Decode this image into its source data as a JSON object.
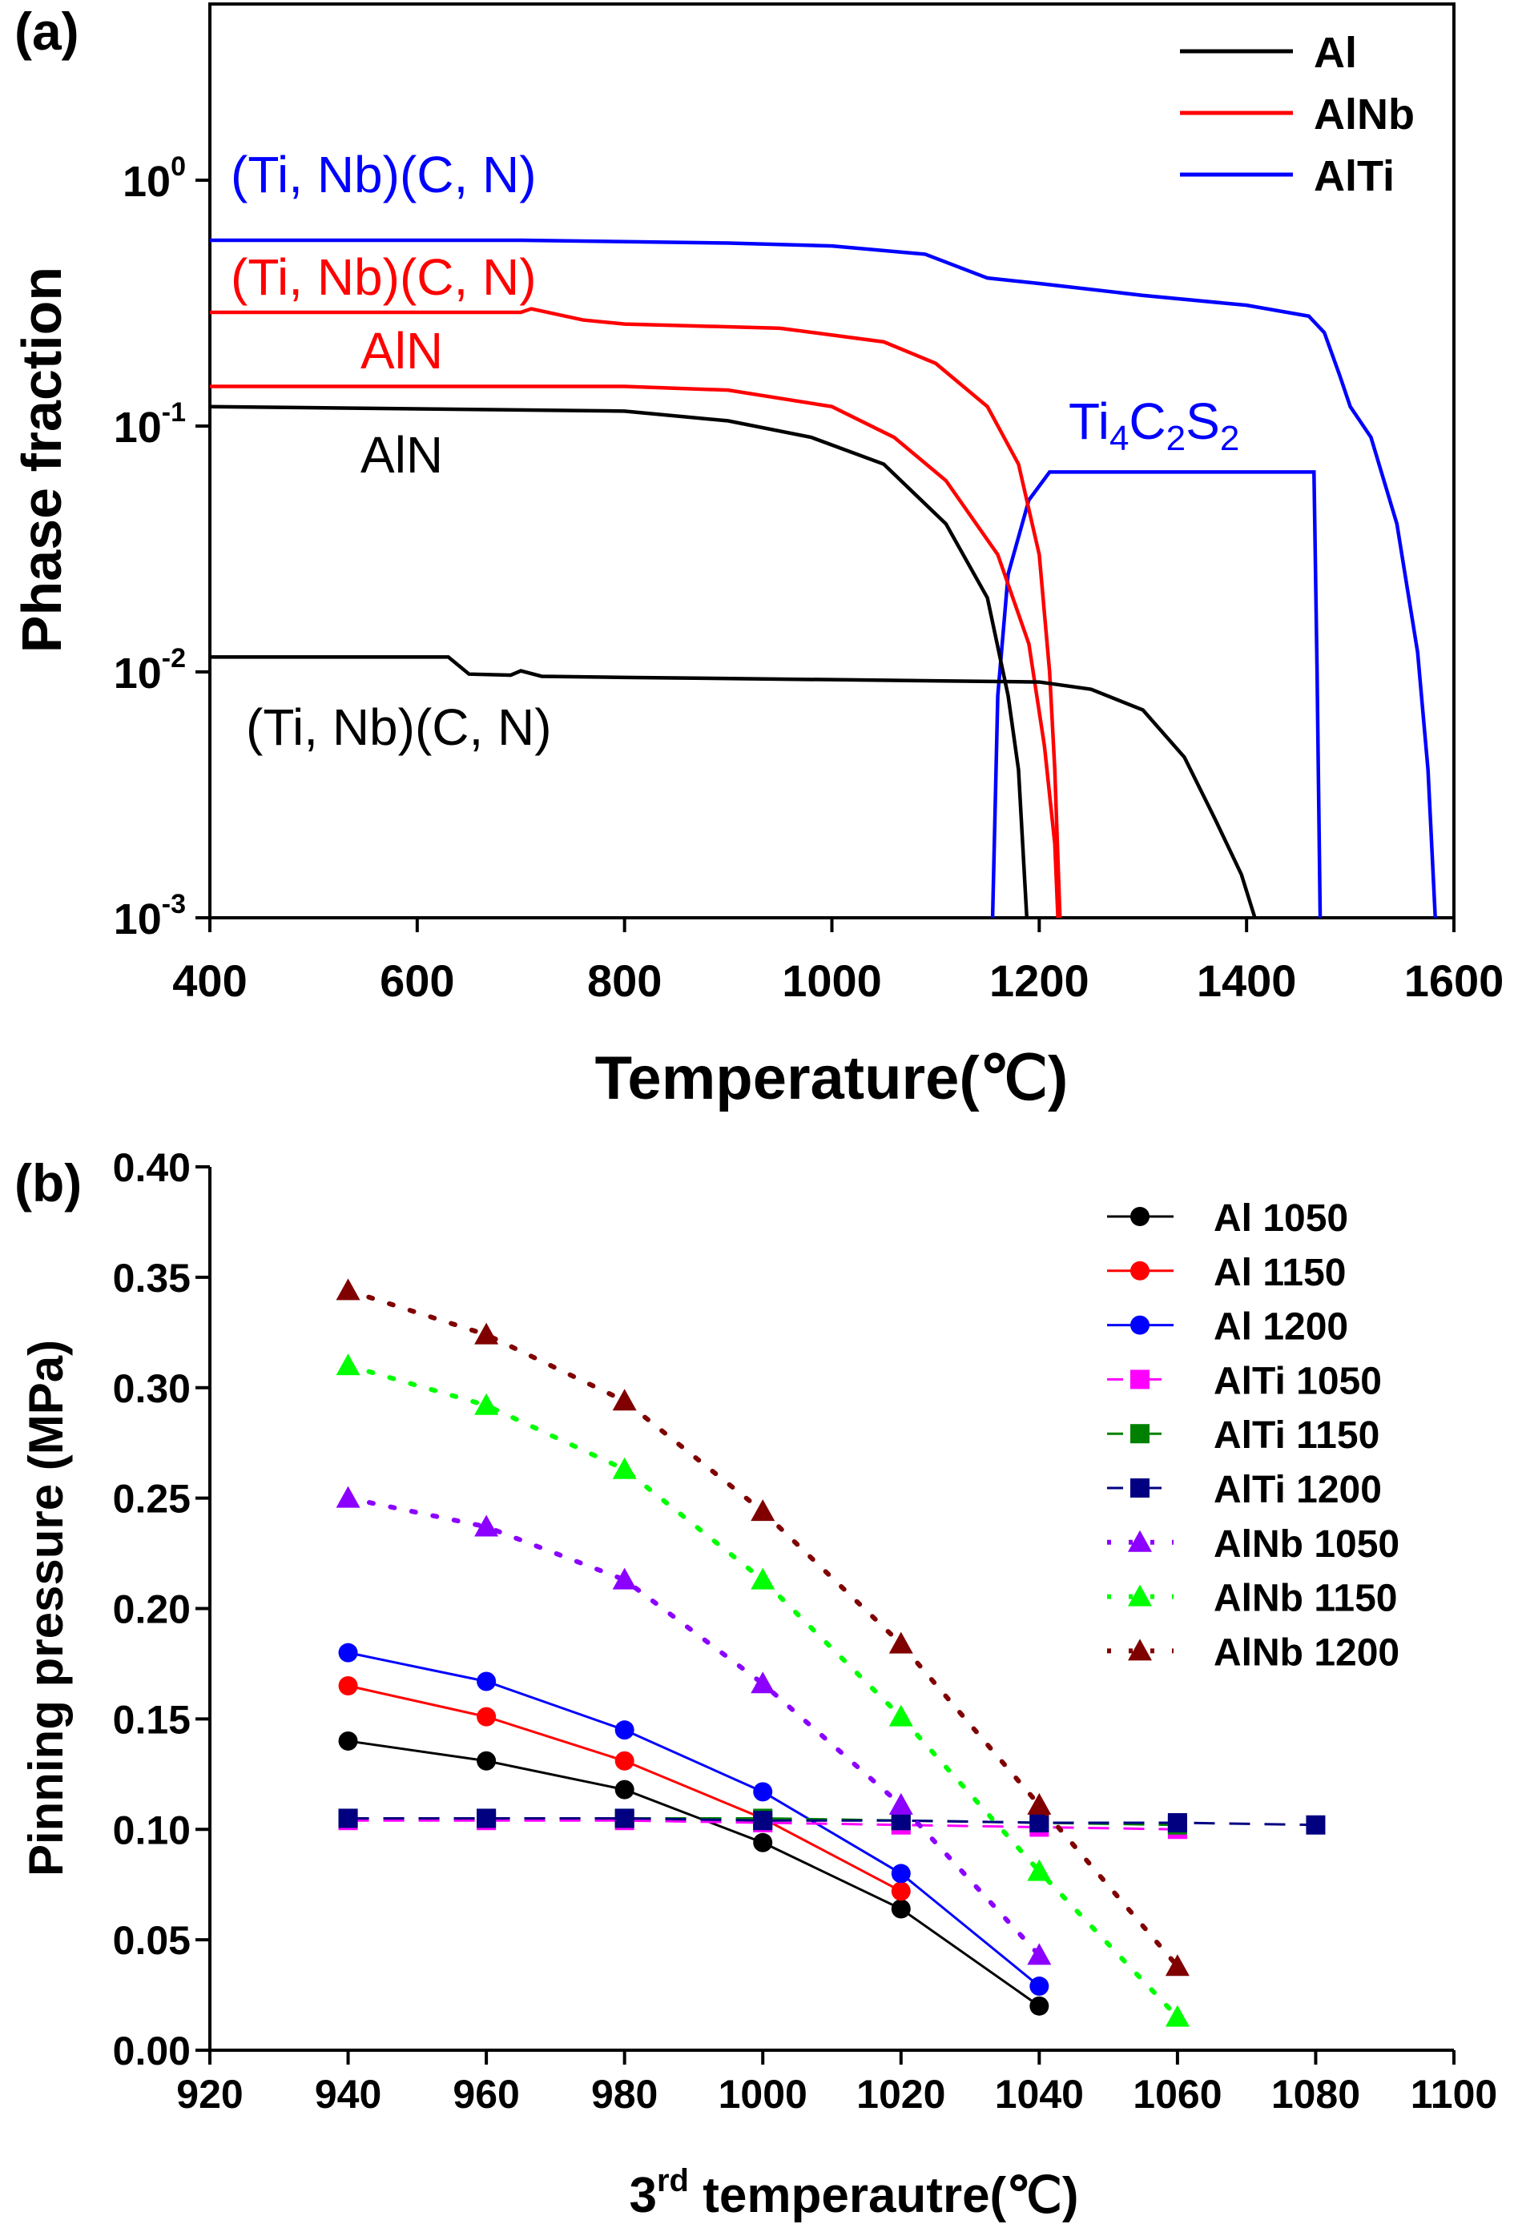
{
  "chart_data": [
    {
      "panel_label": "(a)",
      "type": "line",
      "xlabel": "Temperature(℃)",
      "ylabel": "Phase fraction",
      "xlim": [
        400,
        1600
      ],
      "ylim": [
        0.001,
        5.5
      ],
      "yscale": "log",
      "x_ticks": [
        "400",
        "600",
        "800",
        "1000",
        "1200",
        "1400",
        "1600"
      ],
      "y_ticks": [
        {
          "base": "10",
          "exp": "0"
        },
        {
          "base": "10",
          "exp": "-1"
        },
        {
          "base": "10",
          "exp": "-2"
        },
        {
          "base": "10",
          "exp": "-3"
        }
      ],
      "grid": false,
      "legend_position": "top-right",
      "legend": [
        {
          "name": "Al",
          "color": "#000000"
        },
        {
          "name": "AlNb",
          "color": "#ff0000"
        },
        {
          "name": "AlTi",
          "color": "#0000ff"
        }
      ],
      "series": [
        {
          "alloy": "AlTi",
          "phase": "(Ti, Nb)(C, N)",
          "color": "#0000ff",
          "points": [
            [
              400,
              0.57
            ],
            [
              700,
              0.57
            ],
            [
              900,
              0.555
            ],
            [
              1000,
              0.54
            ],
            [
              1090,
              0.5
            ],
            [
              1150,
              0.4
            ],
            [
              1200,
              0.38
            ],
            [
              1300,
              0.34
            ],
            [
              1400,
              0.31
            ],
            [
              1460,
              0.28
            ],
            [
              1475,
              0.24
            ],
            [
              1490,
              0.16
            ],
            [
              1500,
              0.12
            ],
            [
              1520,
              0.09
            ],
            [
              1545,
              0.04
            ],
            [
              1565,
              0.012
            ],
            [
              1575,
              0.004
            ],
            [
              1582,
              0.001
            ]
          ]
        },
        {
          "alloy": "AlTi",
          "phase": "Ti4C2S2",
          "color": "#0000ff",
          "points": [
            [
              1155,
              0.001
            ],
            [
              1160,
              0.008
            ],
            [
              1170,
              0.025
            ],
            [
              1190,
              0.05
            ],
            [
              1210,
              0.065
            ],
            [
              1465,
              0.065
            ],
            [
              1468,
              0.01
            ],
            [
              1471,
              0.001
            ]
          ]
        },
        {
          "alloy": "AlNb",
          "phase": "(Ti, Nb)(C, N)",
          "color": "#ff0000",
          "points": [
            [
              400,
              0.29
            ],
            [
              700,
              0.29
            ],
            [
              710,
              0.3
            ],
            [
              760,
              0.27
            ],
            [
              800,
              0.26
            ],
            [
              950,
              0.25
            ],
            [
              1050,
              0.22
            ],
            [
              1100,
              0.18
            ],
            [
              1150,
              0.12
            ],
            [
              1180,
              0.07
            ],
            [
              1200,
              0.03
            ],
            [
              1210,
              0.01
            ],
            [
              1215,
              0.004
            ],
            [
              1220,
              0.001
            ]
          ]
        },
        {
          "alloy": "AlNb",
          "phase": "AlN",
          "color": "#ff0000",
          "points": [
            [
              400,
              0.145
            ],
            [
              800,
              0.145
            ],
            [
              900,
              0.14
            ],
            [
              1000,
              0.12
            ],
            [
              1060,
              0.09
            ],
            [
              1110,
              0.06
            ],
            [
              1160,
              0.03
            ],
            [
              1190,
              0.013
            ],
            [
              1205,
              0.005
            ],
            [
              1215,
              0.002
            ],
            [
              1218,
              0.001
            ]
          ]
        },
        {
          "alloy": "Al",
          "phase": "AlN",
          "color": "#000000",
          "points": [
            [
              400,
              0.12
            ],
            [
              800,
              0.115
            ],
            [
              900,
              0.105
            ],
            [
              980,
              0.09
            ],
            [
              1050,
              0.07
            ],
            [
              1110,
              0.04
            ],
            [
              1150,
              0.02
            ],
            [
              1170,
              0.008
            ],
            [
              1180,
              0.004
            ],
            [
              1188,
              0.001
            ]
          ]
        },
        {
          "alloy": "Al",
          "phase": "(Ti, Nb)(C, N)",
          "color": "#000000",
          "points": [
            [
              400,
              0.0115
            ],
            [
              630,
              0.0115
            ],
            [
              650,
              0.0098
            ],
            [
              690,
              0.0097
            ],
            [
              700,
              0.0101
            ],
            [
              720,
              0.0096
            ],
            [
              800,
              0.0095
            ],
            [
              1000,
              0.0093
            ],
            [
              1200,
              0.0091
            ],
            [
              1250,
              0.0085
            ],
            [
              1300,
              0.007
            ],
            [
              1340,
              0.0045
            ],
            [
              1370,
              0.0025
            ],
            [
              1395,
              0.0015
            ],
            [
              1408,
              0.001
            ]
          ]
        }
      ],
      "annotations": [
        {
          "text": "(Ti, Nb)(C, N)",
          "color": "#0000ff"
        },
        {
          "text": "(Ti, Nb)(C, N)",
          "color": "#ff0000"
        },
        {
          "text": "AlN",
          "color": "#ff0000"
        },
        {
          "text": "AlN",
          "color": "#000000"
        },
        {
          "text": "(Ti, Nb)(C, N)",
          "color": "#000000"
        },
        {
          "text": "Ti4C2S2",
          "color": "#0000ff"
        }
      ]
    },
    {
      "panel_label": "(b)",
      "type": "line",
      "xlabel": "3rd temperautre(℃)",
      "xlabel_parts": {
        "num": "3",
        "sup": "rd",
        "rest": " temperautre(℃)"
      },
      "ylabel": "Pinning pressure (MPa)",
      "xlim": [
        920,
        1100
      ],
      "ylim": [
        0,
        0.4
      ],
      "x_ticks": [
        "920",
        "940",
        "960",
        "980",
        "1000",
        "1020",
        "1040",
        "1060",
        "1080",
        "1100"
      ],
      "y_ticks": [
        "0.00",
        "0.05",
        "0.10",
        "0.15",
        "0.20",
        "0.25",
        "0.30",
        "0.35",
        "0.40"
      ],
      "grid": false,
      "legend_position": "top-right",
      "series": [
        {
          "name": "Al 1050",
          "color": "#000000",
          "marker": "circle",
          "line": "solid",
          "x": [
            940,
            960,
            980,
            1000,
            1020,
            1040
          ],
          "y": [
            0.14,
            0.131,
            0.118,
            0.094,
            0.064,
            0.02
          ]
        },
        {
          "name": "Al 1150",
          "color": "#ff0000",
          "marker": "circle",
          "line": "solid",
          "x": [
            940,
            960,
            980,
            1000,
            1020
          ],
          "y": [
            0.165,
            0.151,
            0.131,
            0.105,
            0.072
          ]
        },
        {
          "name": "Al 1200",
          "color": "#0000ff",
          "marker": "circle",
          "line": "solid",
          "x": [
            940,
            960,
            980,
            1000,
            1020,
            1040
          ],
          "y": [
            0.18,
            0.167,
            0.145,
            0.117,
            0.08,
            0.029
          ]
        },
        {
          "name": "AlTi 1050",
          "color": "#ff00ff",
          "marker": "square",
          "line": "dash",
          "x": [
            940,
            960,
            980,
            1000,
            1020,
            1040,
            1060
          ],
          "y": [
            0.104,
            0.104,
            0.104,
            0.103,
            0.102,
            0.101,
            0.1
          ]
        },
        {
          "name": "AlTi 1150",
          "color": "#008000",
          "marker": "square",
          "line": "dash",
          "x": [
            940,
            960,
            980,
            1000,
            1020,
            1040,
            1060
          ],
          "y": [
            0.105,
            0.105,
            0.105,
            0.105,
            0.104,
            0.103,
            0.102
          ]
        },
        {
          "name": "AlTi 1200",
          "color": "#000080",
          "marker": "square",
          "line": "dash",
          "x": [
            940,
            960,
            980,
            1000,
            1020,
            1040,
            1060,
            1080
          ],
          "y": [
            0.105,
            0.105,
            0.105,
            0.104,
            0.104,
            0.103,
            0.103,
            0.102
          ]
        },
        {
          "name": "AlNb 1050",
          "color": "#8b00ff",
          "marker": "triangle",
          "line": "dot",
          "x": [
            940,
            960,
            980,
            1000,
            1020,
            1040
          ],
          "y": [
            0.25,
            0.237,
            0.213,
            0.166,
            0.111,
            0.043
          ]
        },
        {
          "name": "AlNb 1150",
          "color": "#00ff00",
          "marker": "triangle",
          "line": "dot",
          "x": [
            940,
            960,
            980,
            1000,
            1020,
            1040,
            1060
          ],
          "y": [
            0.31,
            0.292,
            0.263,
            0.213,
            0.151,
            0.081,
            0.015
          ]
        },
        {
          "name": "AlNb 1200",
          "color": "#800000",
          "marker": "triangle",
          "line": "dot",
          "x": [
            940,
            960,
            980,
            1000,
            1020,
            1040,
            1060
          ],
          "y": [
            0.344,
            0.324,
            0.294,
            0.244,
            0.184,
            0.111,
            0.038
          ]
        }
      ]
    }
  ]
}
